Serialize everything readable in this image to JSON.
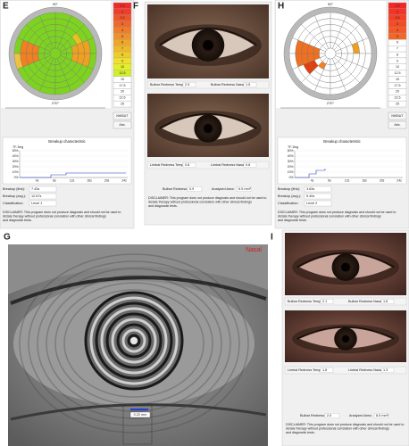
{
  "E": {
    "label": "E",
    "angle_top": "90°",
    "angle_bottom": "270°",
    "scale": [
      "1.3",
      "2",
      "2.5",
      "3",
      "4",
      "5",
      "6",
      "7",
      "8",
      "9",
      "10",
      "12.5",
      "15",
      "17.5",
      "20",
      "22.5",
      "25"
    ],
    "buttons": [
      "NIKBUT",
      "Abs."
    ],
    "chart_title": "Breakup characteristic",
    "y_label": "TF-Deg",
    "yticks": [
      "50%",
      "40%",
      "30%",
      "20%",
      "10%",
      "0%"
    ],
    "xticks": [
      "4s",
      "8s",
      "12s",
      "16s",
      "20s",
      "24s"
    ],
    "fields": [
      {
        "label": "Breakup (first):",
        "value": "7.43s"
      },
      {
        "label": "Breakup (avg.):",
        "value": "12.67s"
      },
      {
        "label": "Classification:",
        "value": "Level 1"
      }
    ],
    "disclaimer": "DISCLAIMER: This program does not produce diagnosis and should not be used to dictate therapy without professional correlation with other clinical findings and diagnostic tests."
  },
  "F": {
    "label": "F",
    "bulbar_row": [
      {
        "label": "Bulbar Redness Temporal:",
        "value": "2.9"
      },
      {
        "label": "Bulbar Redness Nasal:",
        "value": "1.5"
      }
    ],
    "limbal_row": [
      {
        "label": "Limbal Redness Temporal:",
        "value": "0.8"
      },
      {
        "label": "Limbal Redness Nasal:",
        "value": "0.8"
      }
    ],
    "summary": [
      {
        "label": "Bulbar Redness:",
        "value": "0.9"
      },
      {
        "label": "Analyzed Area:",
        "value": "6.9 mm²"
      }
    ],
    "disclaimer": "DISCLAIMER: This program does not produce diagnosis and should not be used to dictate therapy without professional correlation with other clinical findings and diagnostic tests."
  },
  "H": {
    "label": "H",
    "angle_top": "90°",
    "angle_bottom": "270°",
    "scale": [
      "1.3",
      "2",
      "2.5",
      "3",
      "4",
      "5",
      "6",
      "7",
      "8",
      "9",
      "10",
      "12.5",
      "15",
      "17.5",
      "20",
      "22.5",
      "25"
    ],
    "buttons": [
      "NIKBUT",
      "Abs."
    ],
    "chart_title": "Breakup characteristic",
    "y_label": "TF-Deg",
    "yticks": [
      "50%",
      "40%",
      "30%",
      "20%",
      "10%",
      "0%"
    ],
    "xticks": [
      "4s",
      "8s",
      "12s",
      "16s",
      "20s",
      "24s"
    ],
    "fields": [
      {
        "label": "Breakup (first):",
        "value": "3.63s"
      },
      {
        "label": "Breakup (avg.):",
        "value": "5.40s"
      },
      {
        "label": "Classification:",
        "value": "Level 2"
      }
    ],
    "disclaimer": "DISCLAIMER: This program does not produce diagnosis and should not be used to dictate therapy without professional correlation with other clinical findings and diagnostic tests."
  },
  "G": {
    "label": "G",
    "side": "Nasal",
    "measure": "0.22 mm"
  },
  "I": {
    "label": "I",
    "bulbar_row": [
      {
        "label": "Bulbar Redness Temporal:",
        "value": "2.1"
      },
      {
        "label": "Bulbar Redness Nasal:",
        "value": "1.8"
      }
    ],
    "limbal_row": [
      {
        "label": "Limbal Redness Temporal:",
        "value": "1.8"
      },
      {
        "label": "Limbal Redness Nasal:",
        "value": "1.3"
      }
    ],
    "summary": [
      {
        "label": "Bulbar Redness:",
        "value": "2.0"
      },
      {
        "label": "Analyzed Area:",
        "value": "8.5 mm²"
      }
    ],
    "disclaimer": "DISCLAIMER: This program does not produce diagnosis and should not be used to dictate therapy without professional correlation with other clinical findings and diagnostic tests."
  }
}
